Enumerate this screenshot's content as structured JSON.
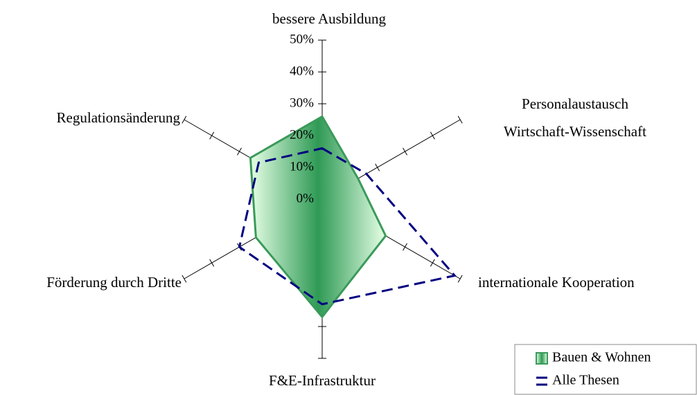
{
  "chart_data": {
    "type": "radar",
    "categories": [
      "bessere Ausbildung",
      "Personalaustausch\nWirtschaft-Wissenschaft",
      "internationale Kooperation",
      "F&E-Infrastruktur",
      "Förderung durch Dritte",
      "Regulationsänderung"
    ],
    "series": [
      {
        "name": "Bauen & Wohnen",
        "color": "#3a9a5a",
        "fill": true,
        "dashed": false,
        "values": [
          26,
          13,
          23,
          37,
          24,
          26
        ]
      },
      {
        "name": "Alle Thesen",
        "color": "#000080",
        "fill": false,
        "dashed": true,
        "values": [
          16,
          16,
          48,
          33,
          30,
          23
        ]
      }
    ],
    "ylim": [
      0,
      50
    ],
    "yticks": [
      {
        "value": 0,
        "label": "0%"
      },
      {
        "value": 10,
        "label": "10%"
      },
      {
        "value": 20,
        "label": "20%"
      },
      {
        "value": 30,
        "label": "30%"
      },
      {
        "value": 40,
        "label": "40%"
      },
      {
        "value": 50,
        "label": "50%"
      }
    ],
    "legend": "bottom-right"
  }
}
